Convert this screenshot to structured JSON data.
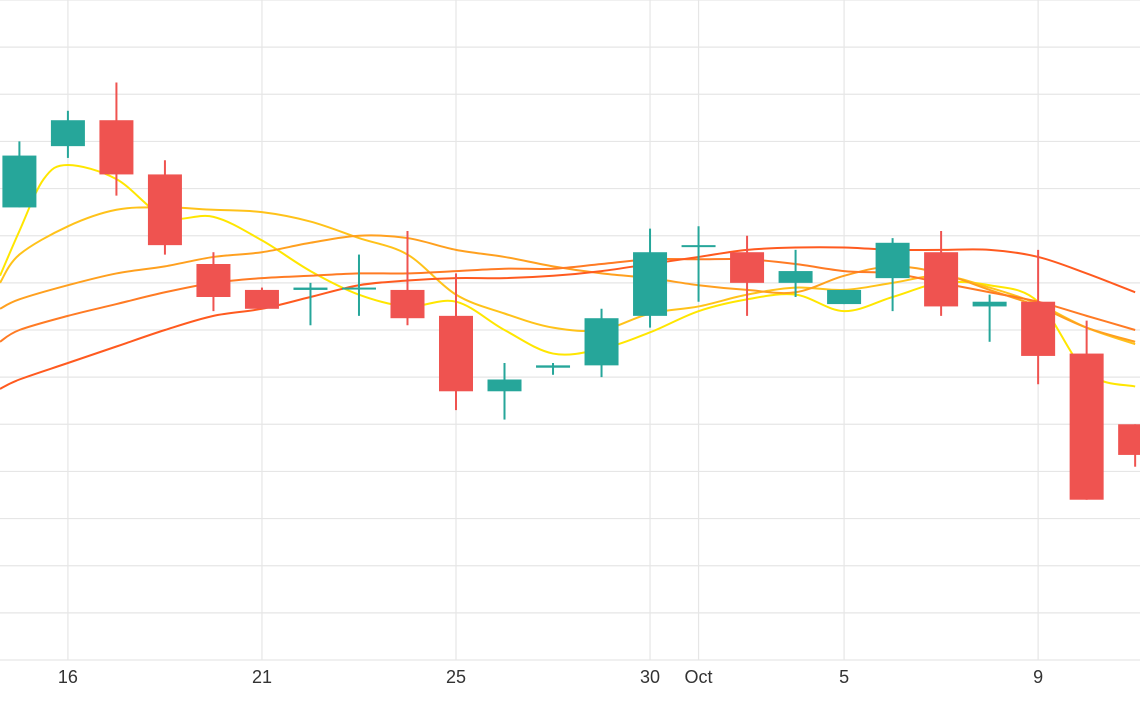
{
  "chart_data": {
    "type": "candlestick",
    "title": "",
    "xlabel": "",
    "ylabel": "",
    "ylim": [
      0,
      14
    ],
    "x_range": [
      -0.4,
      23.1
    ],
    "grid": true,
    "x_ticks": [
      {
        "x": 1,
        "label": "16"
      },
      {
        "x": 5,
        "label": "21"
      },
      {
        "x": 9,
        "label": "25"
      },
      {
        "x": 13,
        "label": "30"
      },
      {
        "x": 14,
        "label": "Oct"
      },
      {
        "x": 17,
        "label": "5"
      },
      {
        "x": 21,
        "label": "9"
      }
    ],
    "colors": {
      "up": "#26a69a",
      "down": "#ef5350",
      "ma": [
        "#ffe600",
        "#ffc21a",
        "#ffa01f",
        "#ff7b24",
        "#ff5a1f"
      ]
    },
    "candles": [
      {
        "x": 0,
        "open": 9.6,
        "close": 10.7,
        "high": 11.0,
        "low": 9.6
      },
      {
        "x": 1,
        "open": 10.9,
        "close": 11.45,
        "high": 11.65,
        "low": 10.65
      },
      {
        "x": 2,
        "open": 11.45,
        "close": 10.3,
        "high": 12.25,
        "low": 9.85
      },
      {
        "x": 3,
        "open": 10.3,
        "close": 8.8,
        "high": 10.6,
        "low": 8.6
      },
      {
        "x": 4,
        "open": 8.4,
        "close": 7.7,
        "high": 8.65,
        "low": 7.4
      },
      {
        "x": 5,
        "open": 7.85,
        "close": 7.45,
        "high": 7.9,
        "low": 7.45
      },
      {
        "x": 6,
        "open": 7.85,
        "close": 7.9,
        "high": 8.0,
        "low": 7.1
      },
      {
        "x": 7,
        "open": 7.9,
        "close": 7.9,
        "high": 8.6,
        "low": 7.3
      },
      {
        "x": 8,
        "open": 7.85,
        "close": 7.25,
        "high": 9.1,
        "low": 7.1
      },
      {
        "x": 9,
        "open": 7.3,
        "close": 5.7,
        "high": 8.2,
        "low": 5.3
      },
      {
        "x": 10,
        "open": 5.7,
        "close": 5.95,
        "high": 6.3,
        "low": 5.1
      },
      {
        "x": 11,
        "open": 6.2,
        "close": 6.25,
        "high": 6.3,
        "low": 6.05
      },
      {
        "x": 12,
        "open": 6.25,
        "close": 7.25,
        "high": 7.45,
        "low": 6.0
      },
      {
        "x": 13,
        "open": 7.3,
        "close": 8.65,
        "high": 9.15,
        "low": 7.05
      },
      {
        "x": 14,
        "open": 8.8,
        "close": 8.8,
        "high": 9.2,
        "low": 7.6
      },
      {
        "x": 15,
        "open": 8.65,
        "close": 8.0,
        "high": 9.0,
        "low": 7.3
      },
      {
        "x": 16,
        "open": 8.0,
        "close": 8.25,
        "high": 8.7,
        "low": 7.7
      },
      {
        "x": 17,
        "open": 7.55,
        "close": 7.85,
        "high": 7.85,
        "low": 7.55
      },
      {
        "x": 18,
        "open": 8.1,
        "close": 8.85,
        "high": 8.95,
        "low": 7.4
      },
      {
        "x": 19,
        "open": 8.65,
        "close": 7.5,
        "high": 9.1,
        "low": 7.3
      },
      {
        "x": 20,
        "open": 7.5,
        "close": 7.6,
        "high": 7.75,
        "low": 6.75
      },
      {
        "x": 21,
        "open": 7.6,
        "close": 6.45,
        "high": 8.7,
        "low": 5.85
      },
      {
        "x": 22,
        "open": 6.5,
        "close": 3.4,
        "high": 7.2,
        "low": 3.4
      },
      {
        "x": 23,
        "open": 5.0,
        "close": 4.35,
        "high": 5.0,
        "low": 4.1
      }
    ],
    "series": [
      {
        "points": [
          [
            -0.4,
            8.15
          ],
          [
            0,
            9.1
          ],
          [
            0.5,
            10.2
          ],
          [
            1,
            10.5
          ],
          [
            2,
            10.2
          ],
          [
            3,
            9.4
          ],
          [
            4,
            9.4
          ],
          [
            5,
            8.9
          ],
          [
            6,
            8.25
          ],
          [
            7,
            7.75
          ],
          [
            8,
            7.5
          ],
          [
            9,
            7.6
          ],
          [
            10,
            7.0
          ],
          [
            11,
            6.5
          ],
          [
            12,
            6.6
          ],
          [
            13,
            6.95
          ],
          [
            14,
            7.4
          ],
          [
            15,
            7.65
          ],
          [
            16,
            7.75
          ],
          [
            17,
            7.4
          ],
          [
            18,
            7.7
          ],
          [
            19,
            8.0
          ],
          [
            20,
            7.95
          ],
          [
            21,
            7.6
          ],
          [
            22,
            6.1
          ],
          [
            23,
            5.8
          ]
        ]
      },
      {
        "points": [
          [
            -0.4,
            8.0
          ],
          [
            0,
            8.6
          ],
          [
            1,
            9.2
          ],
          [
            2,
            9.55
          ],
          [
            3,
            9.6
          ],
          [
            4,
            9.55
          ],
          [
            5,
            9.5
          ],
          [
            6,
            9.3
          ],
          [
            7,
            8.95
          ],
          [
            8,
            8.6
          ],
          [
            9,
            7.75
          ],
          [
            10,
            7.35
          ],
          [
            11,
            7.05
          ],
          [
            12,
            7.0
          ],
          [
            13,
            7.35
          ],
          [
            14,
            7.5
          ],
          [
            15,
            7.75
          ],
          [
            16,
            7.9
          ],
          [
            17,
            7.85
          ],
          [
            18,
            8.0
          ],
          [
            19,
            8.15
          ],
          [
            20,
            7.9
          ],
          [
            21,
            7.55
          ],
          [
            22,
            7.05
          ],
          [
            23,
            6.7
          ]
        ]
      },
      {
        "points": [
          [
            -0.4,
            7.45
          ],
          [
            0,
            7.65
          ],
          [
            1,
            7.95
          ],
          [
            2,
            8.2
          ],
          [
            3,
            8.35
          ],
          [
            4,
            8.55
          ],
          [
            5,
            8.65
          ],
          [
            6,
            8.85
          ],
          [
            7,
            9.0
          ],
          [
            8,
            8.95
          ],
          [
            9,
            8.7
          ],
          [
            10,
            8.55
          ],
          [
            11,
            8.35
          ],
          [
            12,
            8.2
          ],
          [
            13,
            8.1
          ],
          [
            14,
            7.95
          ],
          [
            15,
            7.85
          ],
          [
            16,
            7.8
          ],
          [
            17,
            8.15
          ],
          [
            18,
            8.35
          ],
          [
            19,
            8.2
          ],
          [
            20,
            7.85
          ],
          [
            21,
            7.5
          ],
          [
            22,
            7.05
          ],
          [
            23,
            6.75
          ]
        ]
      },
      {
        "points": [
          [
            -0.4,
            6.75
          ],
          [
            0,
            7.0
          ],
          [
            1,
            7.3
          ],
          [
            2,
            7.55
          ],
          [
            3,
            7.8
          ],
          [
            4,
            8.0
          ],
          [
            5,
            8.1
          ],
          [
            6,
            8.15
          ],
          [
            7,
            8.2
          ],
          [
            8,
            8.2
          ],
          [
            9,
            8.25
          ],
          [
            10,
            8.3
          ],
          [
            11,
            8.3
          ],
          [
            12,
            8.4
          ],
          [
            13,
            8.5
          ],
          [
            14,
            8.5
          ],
          [
            15,
            8.5
          ],
          [
            16,
            8.4
          ],
          [
            17,
            8.25
          ],
          [
            18,
            8.2
          ],
          [
            19,
            8.0
          ],
          [
            20,
            7.8
          ],
          [
            21,
            7.6
          ],
          [
            22,
            7.3
          ],
          [
            23,
            7.0
          ]
        ]
      },
      {
        "points": [
          [
            -0.4,
            5.75
          ],
          [
            0,
            5.95
          ],
          [
            1,
            6.3
          ],
          [
            2,
            6.65
          ],
          [
            3,
            7.0
          ],
          [
            4,
            7.3
          ],
          [
            5,
            7.45
          ],
          [
            6,
            7.7
          ],
          [
            7,
            7.95
          ],
          [
            8,
            8.05
          ],
          [
            9,
            8.1
          ],
          [
            10,
            8.1
          ],
          [
            11,
            8.15
          ],
          [
            12,
            8.25
          ],
          [
            13,
            8.4
          ],
          [
            14,
            8.55
          ],
          [
            15,
            8.7
          ],
          [
            16,
            8.75
          ],
          [
            17,
            8.75
          ],
          [
            18,
            8.7
          ],
          [
            19,
            8.7
          ],
          [
            20,
            8.7
          ],
          [
            21,
            8.55
          ],
          [
            22,
            8.2
          ],
          [
            23,
            7.8
          ]
        ]
      }
    ]
  }
}
